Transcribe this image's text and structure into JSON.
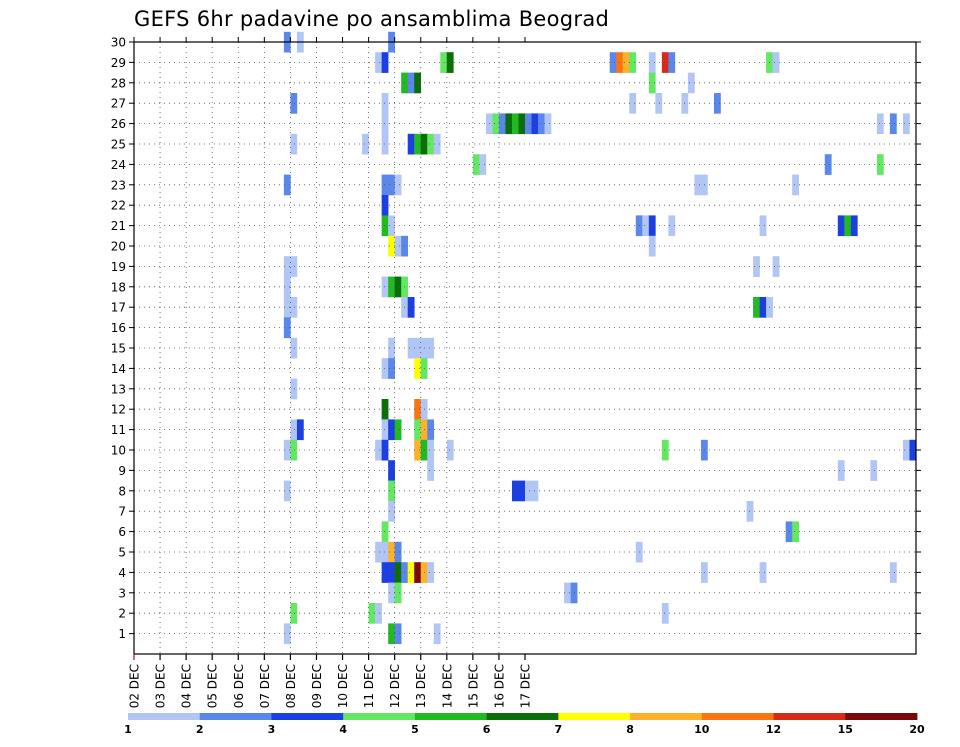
{
  "chart_data": {
    "type": "heatmap",
    "title": "GEFS 6hr padavine po ansamblima Beograd",
    "y_tick_labels": [
      "1",
      "2",
      "3",
      "4",
      "5",
      "6",
      "7",
      "8",
      "9",
      "10",
      "11",
      "12",
      "13",
      "14",
      "15",
      "16",
      "17",
      "18",
      "19",
      "20",
      "21",
      "22",
      "23",
      "24",
      "25",
      "26",
      "27",
      "28",
      "29",
      "30"
    ],
    "x_tick_labels": [
      "02 DEC",
      "03 DEC",
      "04 DEC",
      "05 DEC",
      "06 DEC",
      "07 DEC",
      "08 DEC",
      "09 DEC",
      "10 DEC",
      "11 DEC",
      "12 DEC",
      "13 DEC",
      "14 DEC",
      "15 DEC",
      "16 DEC",
      "17 DEC"
    ],
    "ylim": [
      0,
      30
    ],
    "grid": true,
    "colorbar": {
      "labels": [
        "1",
        "2",
        "3",
        "4",
        "5",
        "6",
        "7",
        "8",
        "10",
        "12",
        "15",
        "20"
      ],
      "colors": [
        "#b2c6f5",
        "#5b87ea",
        "#1b3fe0",
        "#64e864",
        "#21bb21",
        "#0a6e0a",
        "#ffff00",
        "#fdb12b",
        "#fa7412",
        "#d82b17",
        "#7a0a0a"
      ]
    },
    "cells": [
      [
        30,
        23,
        2
      ],
      [
        30,
        25,
        1
      ],
      [
        30,
        39,
        2
      ],
      [
        29,
        37,
        1
      ],
      [
        29,
        38,
        3
      ],
      [
        29,
        47,
        4
      ],
      [
        29,
        48,
        6
      ],
      [
        29,
        73,
        2
      ],
      [
        29,
        74,
        9
      ],
      [
        29,
        75,
        8
      ],
      [
        29,
        76,
        4
      ],
      [
        29,
        79,
        1
      ],
      [
        29,
        81,
        10
      ],
      [
        29,
        82,
        2
      ],
      [
        29,
        97,
        4
      ],
      [
        29,
        98,
        1
      ],
      [
        28,
        41,
        5
      ],
      [
        28,
        42,
        2
      ],
      [
        28,
        43,
        6
      ],
      [
        28,
        79,
        4
      ],
      [
        28,
        85,
        1
      ],
      [
        27,
        24,
        2
      ],
      [
        27,
        38,
        1
      ],
      [
        27,
        76,
        1
      ],
      [
        27,
        80,
        1
      ],
      [
        27,
        84,
        1
      ],
      [
        27,
        89,
        2
      ],
      [
        26,
        38,
        1
      ],
      [
        26,
        54,
        1
      ],
      [
        26,
        55,
        4
      ],
      [
        26,
        56,
        2
      ],
      [
        26,
        57,
        6
      ],
      [
        26,
        58,
        5
      ],
      [
        26,
        59,
        6
      ],
      [
        26,
        60,
        2
      ],
      [
        26,
        61,
        3
      ],
      [
        26,
        62,
        2
      ],
      [
        26,
        63,
        1
      ],
      [
        26,
        114,
        1
      ],
      [
        26,
        116,
        2
      ],
      [
        26,
        118,
        1
      ],
      [
        25,
        24,
        1
      ],
      [
        25,
        35,
        1
      ],
      [
        25,
        38,
        1
      ],
      [
        25,
        42,
        3
      ],
      [
        25,
        43,
        5
      ],
      [
        25,
        44,
        6
      ],
      [
        25,
        45,
        4
      ],
      [
        25,
        46,
        1
      ],
      [
        24,
        52,
        4
      ],
      [
        24,
        53,
        1
      ],
      [
        24,
        106,
        2
      ],
      [
        24,
        114,
        4
      ],
      [
        23,
        23,
        2
      ],
      [
        23,
        38,
        2
      ],
      [
        23,
        39,
        2
      ],
      [
        23,
        40,
        1
      ],
      [
        23,
        86,
        1
      ],
      [
        23,
        87,
        1
      ],
      [
        23,
        101,
        1
      ],
      [
        22,
        38,
        3
      ],
      [
        21,
        38,
        5
      ],
      [
        21,
        39,
        1
      ],
      [
        21,
        77,
        2
      ],
      [
        21,
        78,
        1
      ],
      [
        21,
        79,
        3
      ],
      [
        21,
        82,
        1
      ],
      [
        21,
        96,
        1
      ],
      [
        21,
        108,
        3
      ],
      [
        21,
        109,
        5
      ],
      [
        21,
        110,
        3
      ],
      [
        20,
        39,
        7
      ],
      [
        20,
        40,
        1
      ],
      [
        20,
        41,
        2
      ],
      [
        20,
        79,
        1
      ],
      [
        19,
        23,
        1
      ],
      [
        19,
        24,
        1
      ],
      [
        19,
        95,
        1
      ],
      [
        19,
        98,
        1
      ],
      [
        18,
        23,
        1
      ],
      [
        18,
        38,
        1
      ],
      [
        18,
        39,
        5
      ],
      [
        18,
        40,
        6
      ],
      [
        18,
        41,
        4
      ],
      [
        17,
        23,
        1
      ],
      [
        17,
        24,
        1
      ],
      [
        17,
        41,
        1
      ],
      [
        17,
        42,
        3
      ],
      [
        17,
        95,
        5
      ],
      [
        17,
        96,
        3
      ],
      [
        17,
        97,
        1
      ],
      [
        16,
        23,
        2
      ],
      [
        15,
        24,
        1
      ],
      [
        15,
        39,
        1
      ],
      [
        15,
        42,
        1
      ],
      [
        15,
        43,
        1
      ],
      [
        15,
        44,
        1
      ],
      [
        15,
        45,
        1
      ],
      [
        14,
        38,
        1
      ],
      [
        14,
        39,
        2
      ],
      [
        14,
        43,
        7
      ],
      [
        14,
        44,
        4
      ],
      [
        13,
        24,
        1
      ],
      [
        12,
        38,
        6
      ],
      [
        12,
        43,
        9
      ],
      [
        12,
        44,
        1
      ],
      [
        11,
        24,
        1
      ],
      [
        11,
        25,
        3
      ],
      [
        11,
        38,
        1
      ],
      [
        11,
        39,
        3
      ],
      [
        11,
        40,
        5
      ],
      [
        11,
        43,
        4
      ],
      [
        11,
        44,
        8
      ],
      [
        11,
        45,
        2
      ],
      [
        10,
        23,
        1
      ],
      [
        10,
        24,
        4
      ],
      [
        10,
        37,
        1
      ],
      [
        10,
        38,
        3
      ],
      [
        10,
        43,
        8
      ],
      [
        10,
        44,
        5
      ],
      [
        10,
        45,
        1
      ],
      [
        10,
        48,
        1
      ],
      [
        10,
        81,
        4
      ],
      [
        10,
        87,
        2
      ],
      [
        10,
        118,
        1
      ],
      [
        10,
        119,
        3
      ],
      [
        9,
        39,
        3
      ],
      [
        9,
        45,
        1
      ],
      [
        9,
        108,
        1
      ],
      [
        9,
        113,
        1
      ],
      [
        8,
        23,
        1
      ],
      [
        8,
        39,
        4
      ],
      [
        8,
        58,
        3
      ],
      [
        8,
        59,
        3
      ],
      [
        8,
        60,
        1
      ],
      [
        8,
        61,
        1
      ],
      [
        7,
        39,
        1
      ],
      [
        7,
        94,
        1
      ],
      [
        6,
        38,
        4
      ],
      [
        6,
        100,
        2
      ],
      [
        6,
        101,
        4
      ],
      [
        5,
        37,
        1
      ],
      [
        5,
        38,
        1
      ],
      [
        5,
        39,
        8
      ],
      [
        5,
        40,
        2
      ],
      [
        5,
        77,
        1
      ],
      [
        4,
        38,
        3
      ],
      [
        4,
        39,
        3
      ],
      [
        4,
        40,
        6
      ],
      [
        4,
        41,
        2
      ],
      [
        4,
        42,
        7
      ],
      [
        4,
        43,
        11
      ],
      [
        4,
        44,
        8
      ],
      [
        4,
        45,
        1
      ],
      [
        4,
        87,
        1
      ],
      [
        4,
        96,
        1
      ],
      [
        4,
        116,
        1
      ],
      [
        3,
        39,
        1
      ],
      [
        3,
        40,
        4
      ],
      [
        3,
        66,
        1
      ],
      [
        3,
        67,
        2
      ],
      [
        2,
        24,
        4
      ],
      [
        2,
        36,
        4
      ],
      [
        2,
        37,
        1
      ],
      [
        2,
        81,
        1
      ],
      [
        1,
        23,
        1
      ],
      [
        1,
        39,
        5
      ],
      [
        1,
        40,
        2
      ],
      [
        1,
        46,
        1
      ]
    ]
  }
}
